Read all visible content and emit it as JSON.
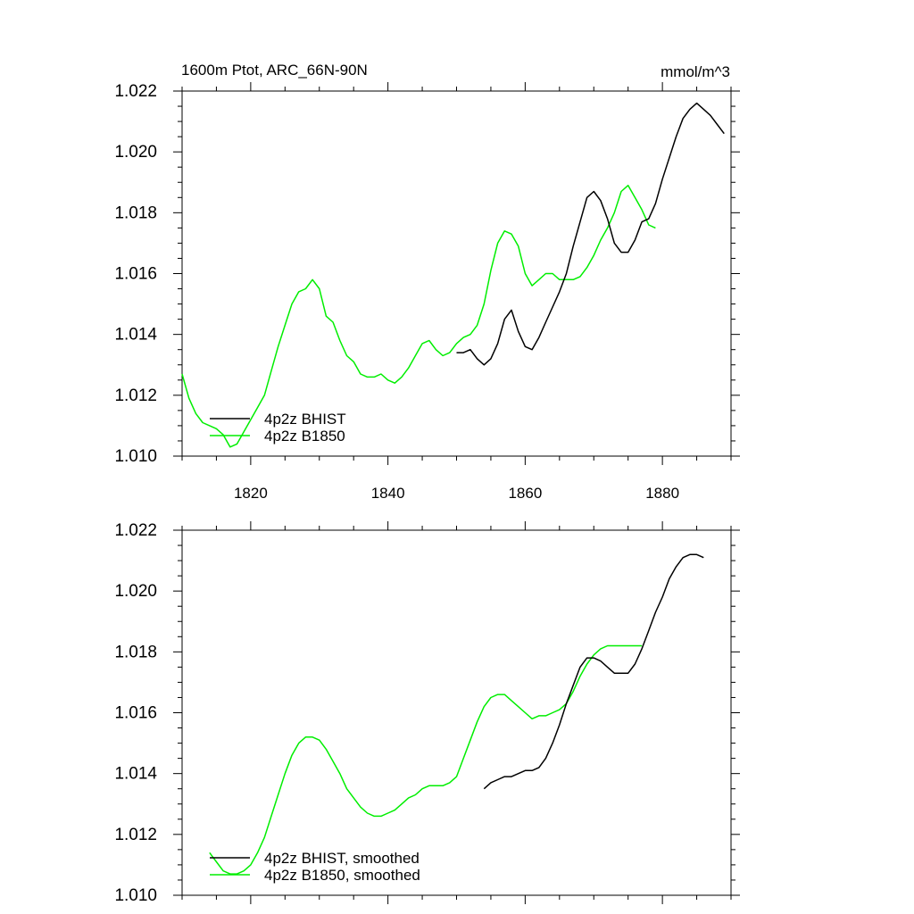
{
  "figure": {
    "title_left": "1600m Ptot, ARC_66N-90N",
    "title_right": "mmol/m^3"
  },
  "chart_data": [
    {
      "type": "line",
      "title": "1600m Ptot, ARC_66N-90N",
      "units": "mmol/m^3",
      "xlim": [
        1810,
        1890
      ],
      "ylim": [
        1.01,
        1.022
      ],
      "xticks": [
        1820,
        1840,
        1860,
        1880
      ],
      "xtick_labels": [
        "1820",
        "1840",
        "1860",
        "1880"
      ],
      "yticks": [
        1.01,
        1.012,
        1.014,
        1.016,
        1.018,
        1.02,
        1.022
      ],
      "ytick_labels": [
        "1.010",
        "1.012",
        "1.014",
        "1.016",
        "1.018",
        "1.020",
        "1.022"
      ],
      "legend_position": "bottom-left",
      "series": [
        {
          "name": "4p2z BHIST",
          "color": "#000000",
          "x": [
            1850,
            1851,
            1852,
            1853,
            1854,
            1855,
            1856,
            1857,
            1858,
            1859,
            1860,
            1861,
            1862,
            1863,
            1864,
            1865,
            1866,
            1867,
            1868,
            1869,
            1870,
            1871,
            1872,
            1873,
            1874,
            1875,
            1876,
            1877,
            1878,
            1879,
            1880,
            1881,
            1882,
            1883,
            1884,
            1885,
            1886,
            1887,
            1888,
            1889
          ],
          "y": [
            1.0134,
            1.0134,
            1.0135,
            1.0132,
            1.013,
            1.0132,
            1.0137,
            1.0145,
            1.0148,
            1.0141,
            1.0136,
            1.0135,
            1.0139,
            1.0144,
            1.0149,
            1.0154,
            1.016,
            1.0169,
            1.0177,
            1.0185,
            1.0187,
            1.0184,
            1.0178,
            1.017,
            1.0167,
            1.0167,
            1.0171,
            1.0177,
            1.0178,
            1.0183,
            1.0191,
            1.0198,
            1.0205,
            1.0211,
            1.0214,
            1.0216,
            1.0214,
            1.0212,
            1.0209,
            1.0206
          ]
        },
        {
          "name": "4p2z B1850",
          "color": "#00ee00",
          "x": [
            1810,
            1811,
            1812,
            1813,
            1814,
            1815,
            1816,
            1817,
            1818,
            1819,
            1820,
            1821,
            1822,
            1823,
            1824,
            1825,
            1826,
            1827,
            1828,
            1829,
            1830,
            1831,
            1832,
            1833,
            1834,
            1835,
            1836,
            1837,
            1838,
            1839,
            1840,
            1841,
            1842,
            1843,
            1844,
            1845,
            1846,
            1847,
            1848,
            1849,
            1850,
            1851,
            1852,
            1853,
            1854,
            1855,
            1856,
            1857,
            1858,
            1859,
            1860,
            1861,
            1862,
            1863,
            1864,
            1865,
            1866,
            1867,
            1868,
            1869,
            1870,
            1871,
            1872,
            1873,
            1874,
            1875,
            1876,
            1877,
            1878,
            1879
          ],
          "y": [
            1.0127,
            1.0119,
            1.0114,
            1.0111,
            1.011,
            1.0109,
            1.0107,
            1.0103,
            1.0104,
            1.0108,
            1.0112,
            1.0116,
            1.012,
            1.0128,
            1.0136,
            1.0143,
            1.015,
            1.0154,
            1.0155,
            1.0158,
            1.0155,
            1.0146,
            1.0144,
            1.0138,
            1.0133,
            1.0131,
            1.0127,
            1.0126,
            1.0126,
            1.0127,
            1.0125,
            1.0124,
            1.0126,
            1.0129,
            1.0133,
            1.0137,
            1.0138,
            1.0135,
            1.0133,
            1.0134,
            1.0137,
            1.0139,
            1.014,
            1.0143,
            1.015,
            1.0161,
            1.017,
            1.0174,
            1.0173,
            1.0169,
            1.016,
            1.0156,
            1.0158,
            1.016,
            1.016,
            1.0158,
            1.0158,
            1.0158,
            1.0159,
            1.0162,
            1.0166,
            1.0171,
            1.0175,
            1.018,
            1.0187,
            1.0189,
            1.0185,
            1.0181,
            1.0176,
            1.0175
          ]
        }
      ]
    },
    {
      "type": "line",
      "title": "",
      "units": "",
      "xlim": [
        1810,
        1890
      ],
      "ylim": [
        1.01,
        1.022
      ],
      "xticks": [
        1820,
        1840,
        1860,
        1880
      ],
      "xtick_labels": [],
      "yticks": [
        1.01,
        1.012,
        1.014,
        1.016,
        1.018,
        1.02,
        1.022
      ],
      "ytick_labels": [
        "1.010",
        "1.012",
        "1.014",
        "1.016",
        "1.018",
        "1.020",
        "1.022"
      ],
      "legend_position": "bottom-left",
      "series": [
        {
          "name": "4p2z BHIST, smoothed",
          "color": "#000000",
          "x": [
            1854,
            1855,
            1856,
            1857,
            1858,
            1859,
            1860,
            1861,
            1862,
            1863,
            1864,
            1865,
            1866,
            1867,
            1868,
            1869,
            1870,
            1871,
            1872,
            1873,
            1874,
            1875,
            1876,
            1877,
            1878,
            1879,
            1880,
            1881,
            1882,
            1883,
            1884,
            1885,
            1886
          ],
          "y": [
            1.0135,
            1.0137,
            1.0138,
            1.0139,
            1.0139,
            1.014,
            1.0141,
            1.0141,
            1.0142,
            1.0145,
            1.015,
            1.0156,
            1.0163,
            1.0169,
            1.0175,
            1.0178,
            1.0178,
            1.0177,
            1.0175,
            1.0173,
            1.0173,
            1.0173,
            1.0176,
            1.0181,
            1.0187,
            1.0193,
            1.0198,
            1.0204,
            1.0208,
            1.0211,
            1.0212,
            1.0212,
            1.0211
          ]
        },
        {
          "name": "4p2z B1850, smoothed",
          "color": "#00ee00",
          "x": [
            1814,
            1815,
            1816,
            1817,
            1818,
            1819,
            1820,
            1821,
            1822,
            1823,
            1824,
            1825,
            1826,
            1827,
            1828,
            1829,
            1830,
            1831,
            1832,
            1833,
            1834,
            1835,
            1836,
            1837,
            1838,
            1839,
            1840,
            1841,
            1842,
            1843,
            1844,
            1845,
            1846,
            1847,
            1848,
            1849,
            1850,
            1851,
            1852,
            1853,
            1854,
            1855,
            1856,
            1857,
            1858,
            1859,
            1860,
            1861,
            1862,
            1863,
            1864,
            1865,
            1866,
            1867,
            1868,
            1869,
            1870,
            1871,
            1872,
            1873,
            1874,
            1875,
            1876,
            1877
          ],
          "y": [
            1.0114,
            1.0111,
            1.0108,
            1.0107,
            1.0107,
            1.0108,
            1.011,
            1.0114,
            1.0119,
            1.0126,
            1.0133,
            1.014,
            1.0146,
            1.015,
            1.0152,
            1.0152,
            1.0151,
            1.0148,
            1.0144,
            1.014,
            1.0135,
            1.0132,
            1.0129,
            1.0127,
            1.0126,
            1.0126,
            1.0127,
            1.0128,
            1.013,
            1.0132,
            1.0133,
            1.0135,
            1.0136,
            1.0136,
            1.0136,
            1.0137,
            1.0139,
            1.0145,
            1.0151,
            1.0157,
            1.0162,
            1.0165,
            1.0166,
            1.0166,
            1.0164,
            1.0162,
            1.016,
            1.0158,
            1.0159,
            1.0159,
            1.016,
            1.0161,
            1.0163,
            1.0167,
            1.0172,
            1.0176,
            1.0179,
            1.0181,
            1.0182,
            1.0182,
            1.0182,
            1.0182,
            1.0182,
            1.0182
          ]
        }
      ]
    }
  ]
}
